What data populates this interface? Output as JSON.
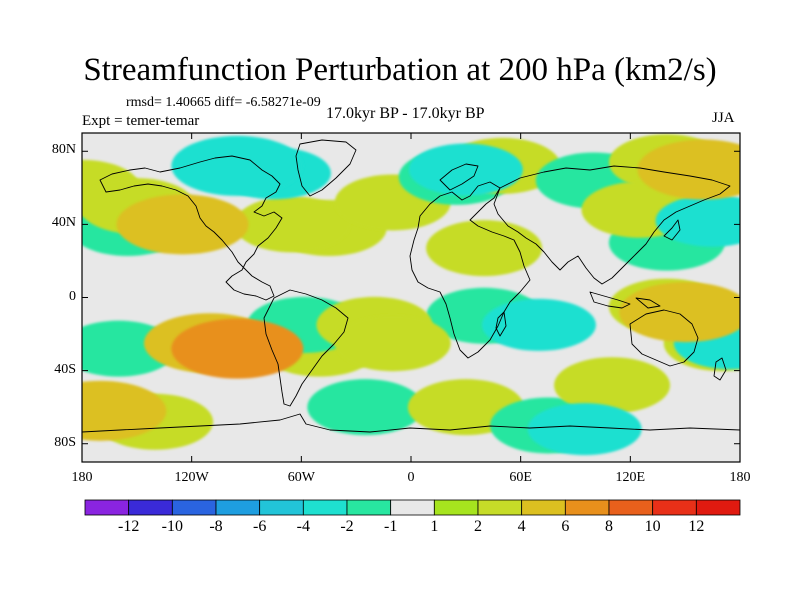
{
  "title": "Streamfunction Perturbation at 200 hPa (km2/s)",
  "stats": {
    "text": "rmsd= 1.40665 diff= -6.58271e-09",
    "rmsd": 1.40665,
    "diff": -6.58271e-09
  },
  "experiment_label": "Expt = temer-temar",
  "period_label": "17.0kyr BP - 17.0kyr BP",
  "season_label": "JJA",
  "axes": {
    "lat_ticks": [
      "80N",
      "40N",
      "0",
      "40S",
      "80S"
    ],
    "lat_values": [
      80,
      40,
      0,
      -40,
      -80
    ],
    "lon_ticks": [
      "180",
      "120W",
      "60W",
      "0",
      "60E",
      "120E",
      "180"
    ],
    "lon_values": [
      -180,
      -120,
      -60,
      0,
      60,
      120,
      180
    ],
    "lat_range": [
      -90,
      90
    ],
    "lon_range": [
      -180,
      180
    ]
  },
  "colorbar": {
    "labels": [
      "-12",
      "-10",
      "-8",
      "-6",
      "-4",
      "-2",
      "-1",
      "1",
      "2",
      "4",
      "6",
      "8",
      "10",
      "12"
    ],
    "bins": [
      {
        "color": "#8a24e0"
      },
      {
        "color": "#3a2ad8"
      },
      {
        "color": "#2a64e0"
      },
      {
        "color": "#1e9ee0"
      },
      {
        "color": "#22c4d8"
      },
      {
        "color": "#1ee0d0"
      },
      {
        "color": "#28e6a0"
      },
      {
        "color": "#e8e8e8"
      },
      {
        "color": "#a6e41e"
      },
      {
        "color": "#c6dc28"
      },
      {
        "color": "#dcc020"
      },
      {
        "color": "#e8901c"
      },
      {
        "color": "#e8601c"
      },
      {
        "color": "#e83018"
      },
      {
        "color": "#e01a10"
      }
    ]
  },
  "field_features": [
    {
      "lon": -75,
      "lat": 68,
      "value": -3
    },
    {
      "lon": -95,
      "lat": 72,
      "value": -4
    },
    {
      "lon": -155,
      "lat": 38,
      "value": -2
    },
    {
      "lon": -180,
      "lat": 60,
      "value": 2
    },
    {
      "lon": -150,
      "lat": 50,
      "value": 2
    },
    {
      "lon": -125,
      "lat": 40,
      "value": 4
    },
    {
      "lon": -45,
      "lat": 38,
      "value": 2
    },
    {
      "lon": -65,
      "lat": 40,
      "value": 2
    },
    {
      "lon": -10,
      "lat": 52,
      "value": 2
    },
    {
      "lon": 25,
      "lat": 66,
      "value": -2
    },
    {
      "lon": 30,
      "lat": 70,
      "value": -3
    },
    {
      "lon": 50,
      "lat": 72,
      "value": 2
    },
    {
      "lon": 100,
      "lat": 64,
      "value": -2
    },
    {
      "lon": 140,
      "lat": 74,
      "value": 2
    },
    {
      "lon": 160,
      "lat": 70,
      "value": 4
    },
    {
      "lon": 40,
      "lat": 27,
      "value": 2
    },
    {
      "lon": 140,
      "lat": 30,
      "value": -2
    },
    {
      "lon": 165,
      "lat": 42,
      "value": -3
    },
    {
      "lon": 125,
      "lat": 48,
      "value": 2
    },
    {
      "lon": 70,
      "lat": -15,
      "value": -3
    },
    {
      "lon": 40,
      "lat": -10,
      "value": -2
    },
    {
      "lon": 140,
      "lat": -5,
      "value": 2
    },
    {
      "lon": 150,
      "lat": -8,
      "value": 4
    },
    {
      "lon": 170,
      "lat": -25,
      "value": 2
    },
    {
      "lon": 175,
      "lat": -25,
      "value": -3
    },
    {
      "lon": -110,
      "lat": -25,
      "value": 4
    },
    {
      "lon": -95,
      "lat": -28,
      "value": 6
    },
    {
      "lon": -160,
      "lat": -28,
      "value": -2
    },
    {
      "lon": -50,
      "lat": -28,
      "value": 2
    },
    {
      "lon": -58,
      "lat": -15,
      "value": -2
    },
    {
      "lon": -20,
      "lat": -15,
      "value": 2
    },
    {
      "lon": -10,
      "lat": -25,
      "value": 2
    },
    {
      "lon": -25,
      "lat": -60,
      "value": -2
    },
    {
      "lon": -170,
      "lat": -62,
      "value": 4
    },
    {
      "lon": -140,
      "lat": -68,
      "value": 2
    },
    {
      "lon": 30,
      "lat": -60,
      "value": 2
    },
    {
      "lon": 75,
      "lat": -70,
      "value": -2
    },
    {
      "lon": 95,
      "lat": -72,
      "value": -3
    },
    {
      "lon": 110,
      "lat": -48,
      "value": 2
    }
  ]
}
